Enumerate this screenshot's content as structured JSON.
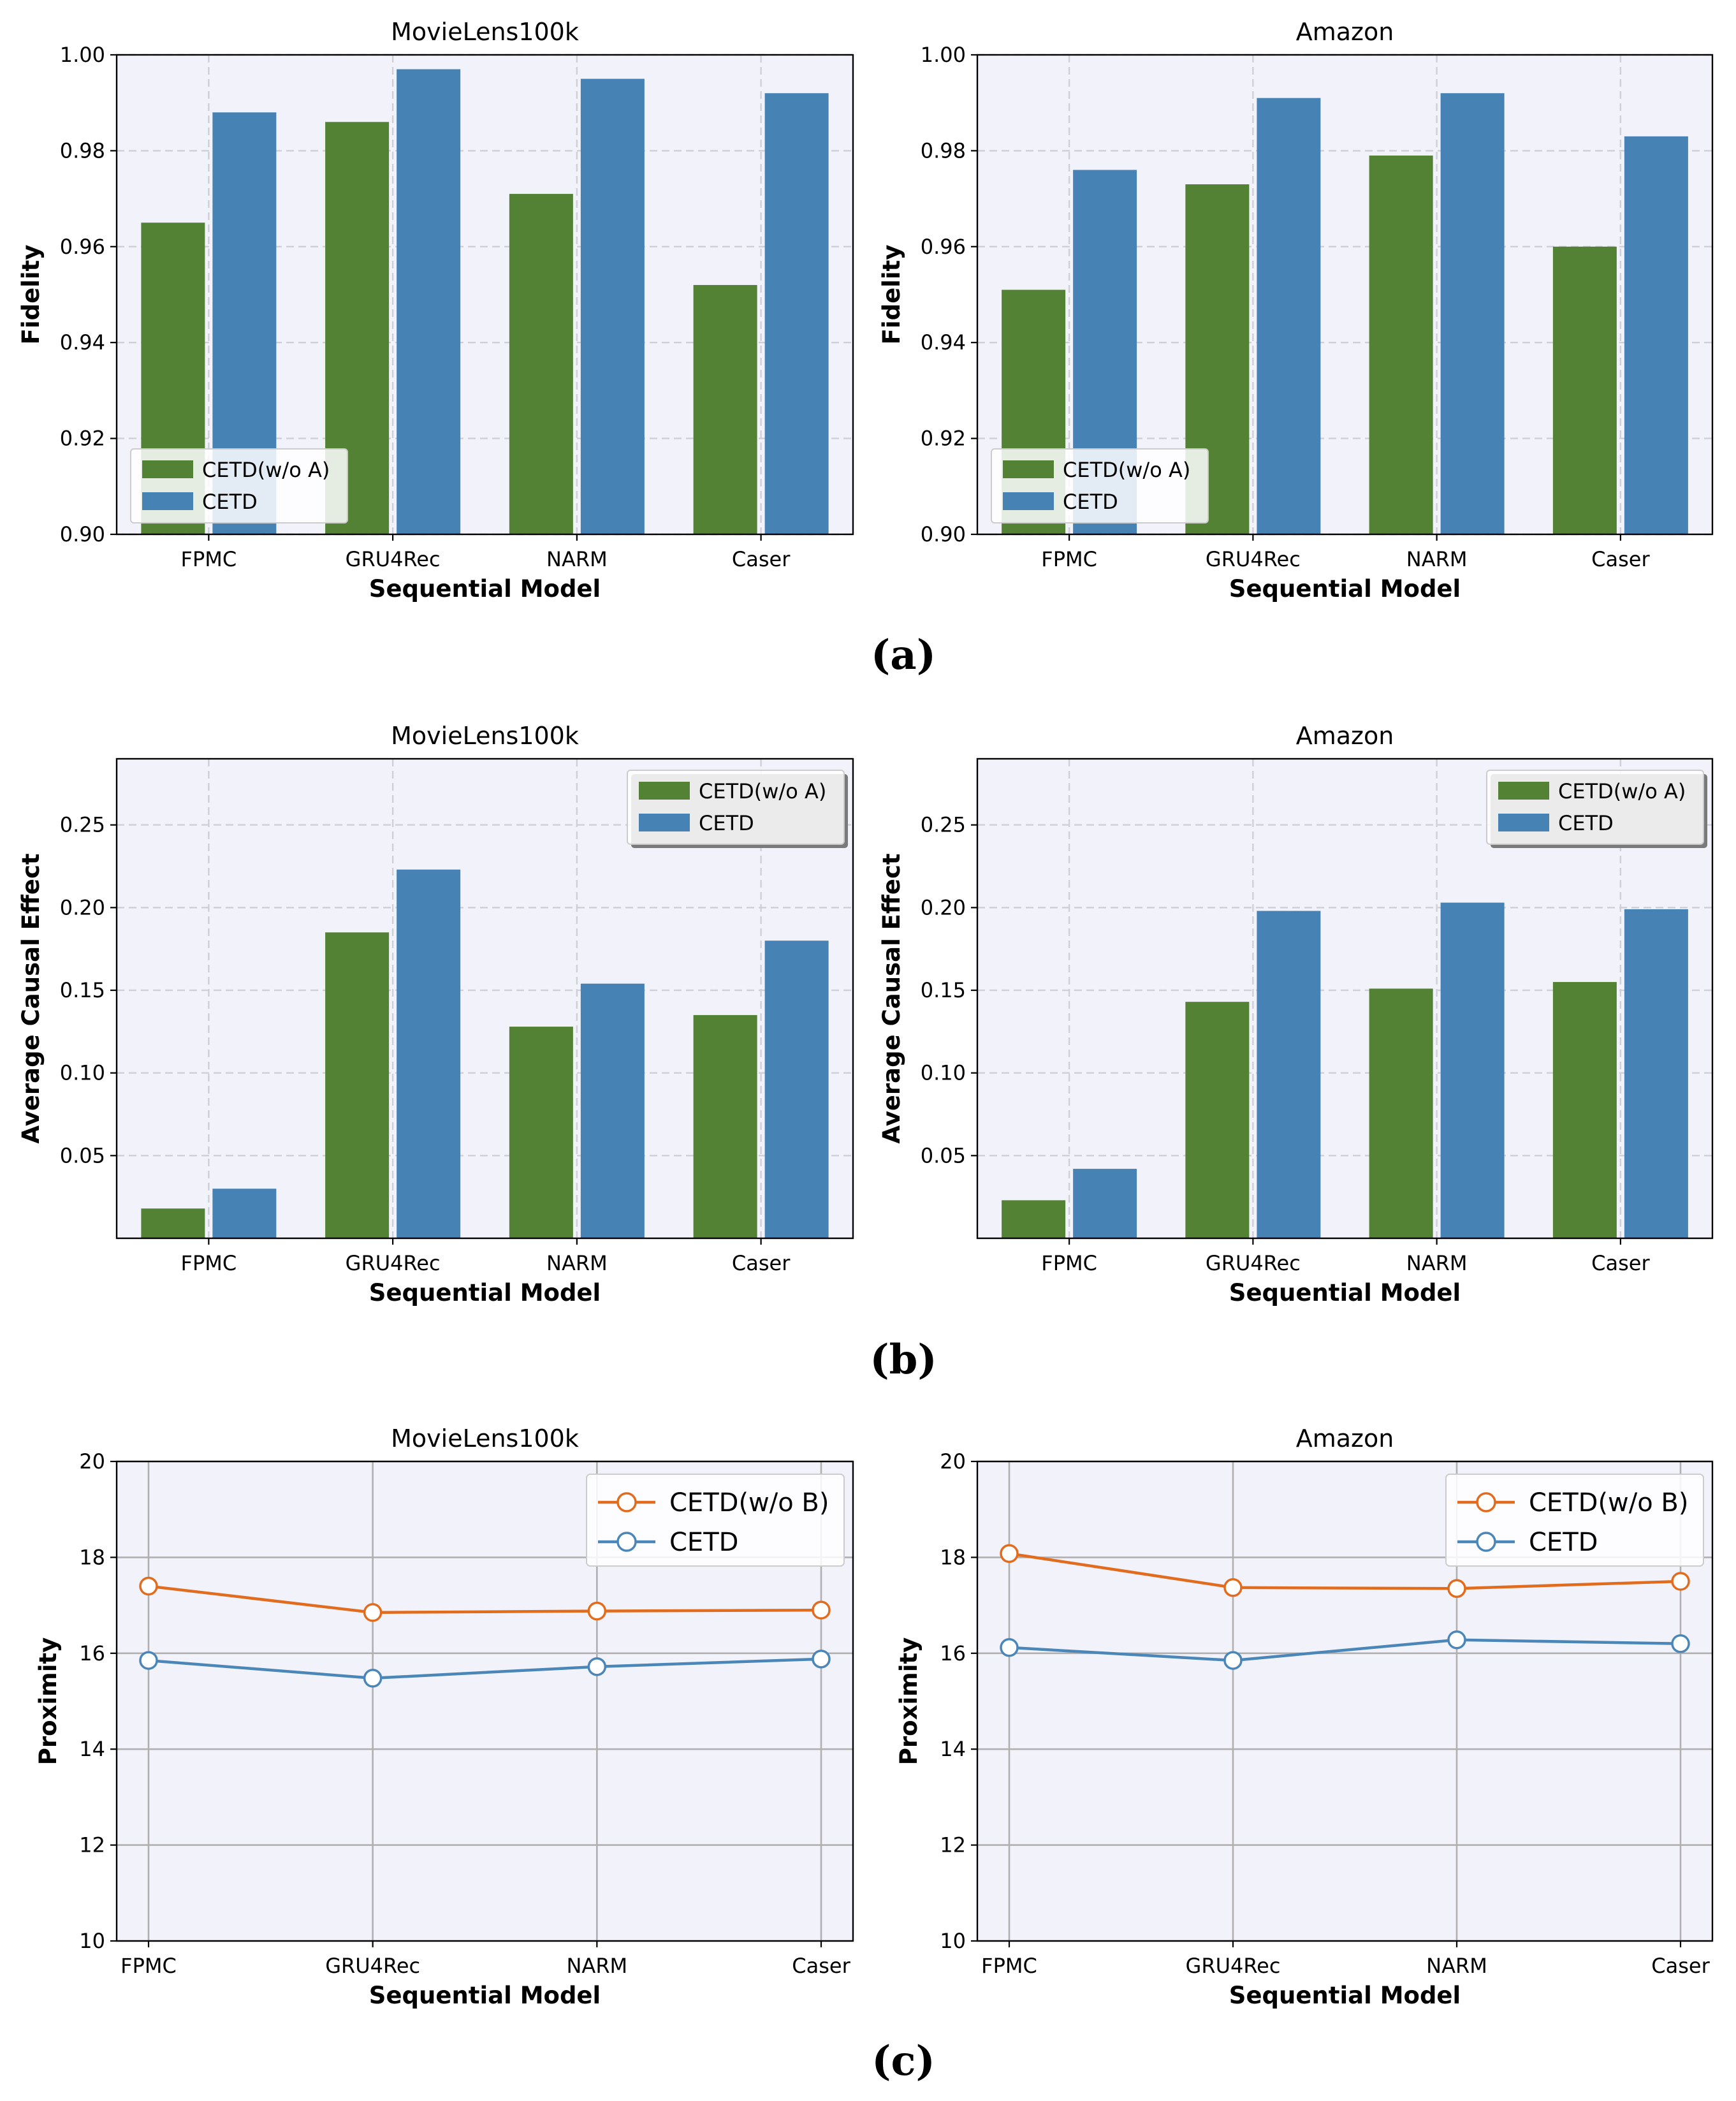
{
  "colors": {
    "variant": "#548235",
    "cetd": "#4682b4",
    "line_variant": "#e26c1e",
    "line_cetd": "#4a86b8"
  },
  "panel_labels": [
    "(a)",
    "(b)",
    "(c)"
  ],
  "chart_data": [
    {
      "id": "fidelity-movielens",
      "type": "bar",
      "title": "MovieLens100k",
      "xlabel": "Sequential Model",
      "ylabel": "Fidelity",
      "categories": [
        "FPMC",
        "GRU4Rec",
        "NARM",
        "Caser"
      ],
      "ylim": [
        0.9,
        1.0
      ],
      "yticks": [
        "0.90",
        "0.92",
        "0.94",
        "0.96",
        "0.98",
        "1.00"
      ],
      "ytick_values": [
        0.9,
        0.92,
        0.94,
        0.96,
        0.98,
        1.0
      ],
      "legend_position": "lower-left",
      "series": [
        {
          "name": "CETD(w/o A)",
          "values": [
            0.965,
            0.986,
            0.971,
            0.952
          ]
        },
        {
          "name": "CETD",
          "values": [
            0.988,
            0.997,
            0.995,
            0.992
          ]
        }
      ]
    },
    {
      "id": "fidelity-amazon",
      "type": "bar",
      "title": "Amazon",
      "xlabel": "Sequential Model",
      "ylabel": "Fidelity",
      "categories": [
        "FPMC",
        "GRU4Rec",
        "NARM",
        "Caser"
      ],
      "ylim": [
        0.9,
        1.0
      ],
      "yticks": [
        "0.90",
        "0.92",
        "0.94",
        "0.96",
        "0.98",
        "1.00"
      ],
      "ytick_values": [
        0.9,
        0.92,
        0.94,
        0.96,
        0.98,
        1.0
      ],
      "legend_position": "lower-left",
      "series": [
        {
          "name": "CETD(w/o A)",
          "values": [
            0.951,
            0.973,
            0.979,
            0.96
          ]
        },
        {
          "name": "CETD",
          "values": [
            0.976,
            0.991,
            0.992,
            0.983
          ]
        }
      ]
    },
    {
      "id": "ace-movielens",
      "type": "bar",
      "title": "MovieLens100k",
      "xlabel": "Sequential Model",
      "ylabel": "Average Causal Effect",
      "categories": [
        "FPMC",
        "GRU4Rec",
        "NARM",
        "Caser"
      ],
      "ylim": [
        0.0,
        0.29
      ],
      "yticks": [
        "0.05",
        "0.10",
        "0.15",
        "0.20",
        "0.25"
      ],
      "ytick_values": [
        0.05,
        0.1,
        0.15,
        0.2,
        0.25
      ],
      "legend_position": "top-right",
      "series": [
        {
          "name": "CETD(w/o A)",
          "values": [
            0.018,
            0.185,
            0.128,
            0.135
          ]
        },
        {
          "name": "CETD",
          "values": [
            0.03,
            0.223,
            0.154,
            0.18
          ]
        }
      ]
    },
    {
      "id": "ace-amazon",
      "type": "bar",
      "title": "Amazon",
      "xlabel": "Sequential Model",
      "ylabel": "Average Causal Effect",
      "categories": [
        "FPMC",
        "GRU4Rec",
        "NARM",
        "Caser"
      ],
      "ylim": [
        0.0,
        0.29
      ],
      "yticks": [
        "0.05",
        "0.10",
        "0.15",
        "0.20",
        "0.25"
      ],
      "ytick_values": [
        0.05,
        0.1,
        0.15,
        0.2,
        0.25
      ],
      "legend_position": "top-right",
      "series": [
        {
          "name": "CETD(w/o A)",
          "values": [
            0.023,
            0.143,
            0.151,
            0.155
          ]
        },
        {
          "name": "CETD",
          "values": [
            0.042,
            0.198,
            0.203,
            0.199
          ]
        }
      ]
    },
    {
      "id": "proximity-movielens",
      "type": "line",
      "title": "MovieLens100k",
      "xlabel": "Sequential Model",
      "ylabel": "Proximity",
      "categories": [
        "FPMC",
        "GRU4Rec",
        "NARM",
        "Caser"
      ],
      "ylim": [
        10,
        20
      ],
      "yticks": [
        "10",
        "12",
        "14",
        "16",
        "18",
        "20"
      ],
      "ytick_values": [
        10,
        12,
        14,
        16,
        18,
        20
      ],
      "legend_position": "top-right",
      "series": [
        {
          "name": "CETD(w/o B)",
          "values": [
            17.4,
            16.85,
            16.88,
            16.9
          ]
        },
        {
          "name": "CETD",
          "values": [
            15.85,
            15.48,
            15.72,
            15.88
          ]
        }
      ]
    },
    {
      "id": "proximity-amazon",
      "type": "line",
      "title": "Amazon",
      "xlabel": "Sequential Model",
      "ylabel": "Proximity",
      "categories": [
        "FPMC",
        "GRU4Rec",
        "NARM",
        "Caser"
      ],
      "ylim": [
        10,
        20
      ],
      "yticks": [
        "10",
        "12",
        "14",
        "16",
        "18",
        "20"
      ],
      "ytick_values": [
        10,
        12,
        14,
        16,
        18,
        20
      ],
      "legend_position": "top-right",
      "series": [
        {
          "name": "CETD(w/o B)",
          "values": [
            18.08,
            17.37,
            17.35,
            17.5
          ]
        },
        {
          "name": "CETD",
          "values": [
            16.12,
            15.85,
            16.28,
            16.2
          ]
        }
      ]
    }
  ]
}
